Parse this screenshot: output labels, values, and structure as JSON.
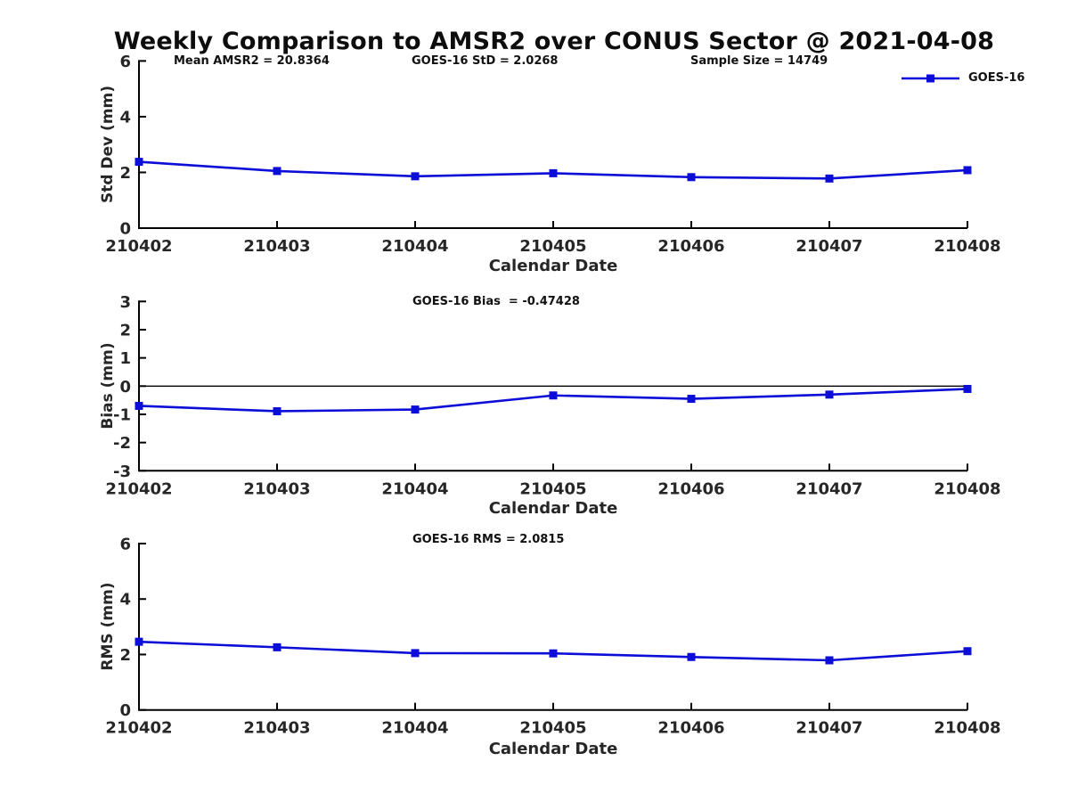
{
  "title": "Weekly Comparison to AMSR2 over CONUS Sector @ 2021-04-08",
  "legend": {
    "label": "GOES-16",
    "marker": "filled-square-on-line",
    "position": "top-right"
  },
  "colors": {
    "series": "#0d0dd8",
    "axis": "#000000",
    "text": "#262626",
    "zero_line": "#000000"
  },
  "chart_data": [
    {
      "type": "line",
      "name": "std-dev",
      "title": "",
      "xlabel": "Calendar Date",
      "ylabel": "Std Dev (mm)",
      "ylim": [
        0,
        6
      ],
      "yticks": [
        0,
        2,
        4,
        6
      ],
      "grid": false,
      "zero_line": false,
      "categories": [
        "210402",
        "210403",
        "210404",
        "210405",
        "210406",
        "210407",
        "210408"
      ],
      "series": [
        {
          "name": "GOES-16",
          "values": [
            2.38,
            2.05,
            1.86,
            1.97,
            1.83,
            1.78,
            2.08
          ]
        }
      ],
      "annotations": [
        "Mean AMSR2 = 20.8364",
        "GOES-16 StD = 2.0268",
        "Sample Size = 14749"
      ]
    },
    {
      "type": "line",
      "name": "bias",
      "title": "",
      "xlabel": "Calendar Date",
      "ylabel": "Bias (mm)",
      "ylim": [
        -3,
        3
      ],
      "yticks": [
        3,
        2,
        1,
        0,
        -1,
        -2,
        -3
      ],
      "grid": false,
      "zero_line": true,
      "categories": [
        "210402",
        "210403",
        "210404",
        "210405",
        "210406",
        "210407",
        "210408"
      ],
      "series": [
        {
          "name": "GOES-16",
          "values": [
            -0.7,
            -0.89,
            -0.83,
            -0.33,
            -0.45,
            -0.3,
            -0.1
          ]
        }
      ],
      "annotations": [
        "GOES-16 Bias  = -0.47428"
      ]
    },
    {
      "type": "line",
      "name": "rms",
      "title": "",
      "xlabel": "Calendar Date",
      "ylabel": "RMS (mm)",
      "ylim": [
        0,
        6
      ],
      "yticks": [
        0,
        2,
        4,
        6
      ],
      "grid": false,
      "zero_line": false,
      "categories": [
        "210402",
        "210403",
        "210404",
        "210405",
        "210406",
        "210407",
        "210408"
      ],
      "series": [
        {
          "name": "GOES-16",
          "values": [
            2.46,
            2.26,
            2.05,
            2.04,
            1.91,
            1.79,
            2.12
          ]
        }
      ],
      "annotations": [
        "GOES-16 RMS = 2.0815"
      ]
    }
  ]
}
